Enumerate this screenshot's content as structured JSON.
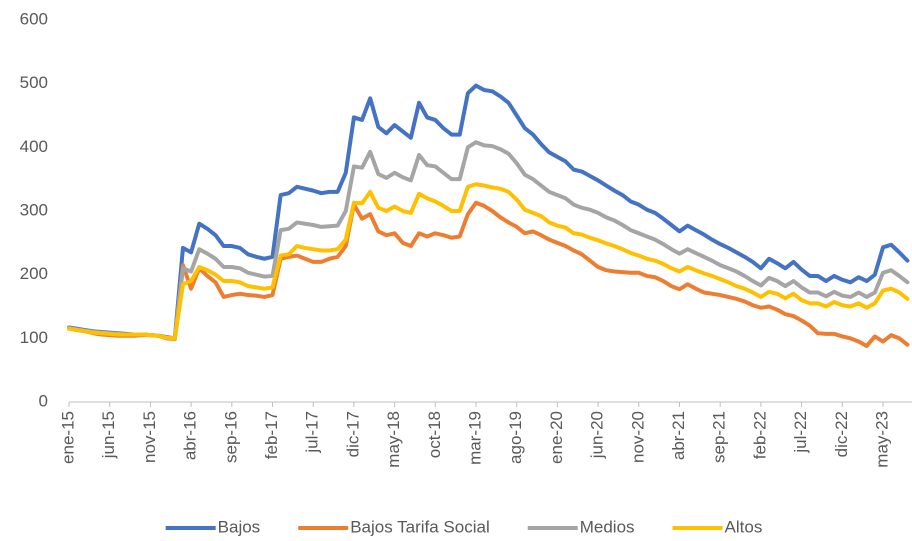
{
  "chart_data": {
    "type": "line",
    "categories": [
      "ene-15",
      null,
      null,
      null,
      null,
      "jun-15",
      null,
      null,
      null,
      null,
      "nov-15",
      null,
      null,
      null,
      null,
      "abr-16",
      null,
      null,
      null,
      null,
      "sep-16",
      null,
      null,
      null,
      null,
      "feb-17",
      null,
      null,
      null,
      null,
      "jul-17",
      null,
      null,
      null,
      null,
      "dic-17",
      null,
      null,
      null,
      null,
      "may-18",
      null,
      null,
      null,
      null,
      "oct-18",
      null,
      null,
      null,
      null,
      "mar-19",
      null,
      null,
      null,
      null,
      "ago-19",
      null,
      null,
      null,
      null,
      "ene-20",
      null,
      null,
      null,
      null,
      "jun-20",
      null,
      null,
      null,
      null,
      "nov-20",
      null,
      null,
      null,
      null,
      "abr-21",
      null,
      null,
      null,
      null,
      "sep-21",
      null,
      null,
      null,
      null,
      "feb-22",
      null,
      null,
      null,
      null,
      "jul-22",
      null,
      null,
      null,
      null,
      "dic-22",
      null,
      null,
      null,
      null,
      "may-23",
      null,
      null,
      null
    ],
    "series": [
      {
        "name": "Bajos",
        "color": "#4472c4",
        "values": [
          117,
          115,
          113,
          111,
          110,
          109,
          108,
          107,
          106,
          106,
          105,
          104,
          102,
          100,
          242,
          235,
          280,
          272,
          262,
          245,
          245,
          242,
          232,
          228,
          225,
          228,
          325,
          328,
          338,
          335,
          332,
          328,
          330,
          330,
          360,
          447,
          443,
          477,
          432,
          422,
          435,
          425,
          415,
          470,
          447,
          443,
          430,
          420,
          420,
          485,
          497,
          490,
          488,
          480,
          470,
          450,
          430,
          420,
          405,
          392,
          385,
          378,
          365,
          362,
          355,
          348,
          340,
          332,
          325,
          315,
          310,
          302,
          297,
          288,
          278,
          268,
          277,
          270,
          263,
          255,
          248,
          242,
          235,
          228,
          220,
          210,
          225,
          218,
          210,
          220,
          208,
          198,
          198,
          190,
          198,
          192,
          188,
          196,
          190,
          200,
          243,
          247,
          235,
          222
        ]
      },
      {
        "name": "Bajos Tarifa Social",
        "color": "#ed7d31",
        "values": [
          116,
          113,
          111,
          108,
          106,
          105,
          104,
          104,
          104,
          105,
          105,
          104,
          100,
          99,
          215,
          178,
          210,
          198,
          188,
          165,
          168,
          170,
          168,
          167,
          165,
          168,
          225,
          228,
          230,
          225,
          220,
          220,
          225,
          228,
          245,
          310,
          288,
          295,
          268,
          262,
          265,
          250,
          245,
          265,
          260,
          265,
          262,
          258,
          260,
          295,
          313,
          308,
          300,
          290,
          282,
          275,
          265,
          268,
          262,
          255,
          250,
          245,
          238,
          232,
          222,
          212,
          207,
          205,
          204,
          203,
          203,
          198,
          196,
          190,
          182,
          177,
          185,
          178,
          172,
          170,
          168,
          165,
          162,
          158,
          152,
          148,
          150,
          145,
          138,
          135,
          128,
          120,
          108,
          107,
          107,
          103,
          100,
          95,
          88,
          103,
          95,
          105,
          100,
          90
        ]
      },
      {
        "name": "Medios",
        "color": "#a5a5a5",
        "values": [
          116,
          114,
          112,
          110,
          109,
          108,
          107,
          106,
          106,
          106,
          105,
          104,
          101,
          100,
          210,
          205,
          240,
          233,
          225,
          212,
          212,
          210,
          203,
          200,
          197,
          198,
          270,
          272,
          282,
          280,
          278,
          275,
          276,
          277,
          300,
          370,
          368,
          393,
          358,
          352,
          360,
          353,
          348,
          388,
          372,
          370,
          360,
          350,
          350,
          400,
          408,
          403,
          402,
          397,
          390,
          375,
          357,
          350,
          340,
          330,
          325,
          320,
          310,
          305,
          302,
          297,
          290,
          285,
          278,
          270,
          265,
          260,
          255,
          248,
          240,
          233,
          240,
          234,
          228,
          222,
          215,
          210,
          205,
          198,
          190,
          183,
          195,
          190,
          182,
          190,
          180,
          172,
          172,
          166,
          173,
          167,
          165,
          172,
          165,
          172,
          203,
          207,
          198,
          188
        ]
      },
      {
        "name": "Altos",
        "color": "#ffc000",
        "values": [
          115,
          113,
          111,
          109,
          108,
          107,
          106,
          106,
          106,
          106,
          105,
          104,
          101,
          100,
          185,
          190,
          212,
          207,
          200,
          190,
          190,
          188,
          182,
          180,
          178,
          180,
          230,
          232,
          245,
          242,
          240,
          238,
          238,
          240,
          255,
          313,
          312,
          330,
          305,
          300,
          307,
          300,
          297,
          327,
          320,
          315,
          308,
          300,
          300,
          338,
          342,
          340,
          337,
          335,
          330,
          318,
          302,
          297,
          292,
          282,
          277,
          274,
          265,
          263,
          258,
          254,
          249,
          245,
          240,
          234,
          230,
          225,
          222,
          217,
          210,
          205,
          212,
          207,
          202,
          198,
          193,
          188,
          182,
          178,
          172,
          165,
          173,
          170,
          163,
          170,
          160,
          155,
          155,
          150,
          157,
          152,
          150,
          155,
          148,
          155,
          175,
          178,
          172,
          162
        ]
      }
    ],
    "ylim": [
      0,
      600
    ],
    "yticks": [
      0,
      100,
      200,
      300,
      400,
      500,
      600
    ],
    "grid": false,
    "legend": "bottom"
  }
}
